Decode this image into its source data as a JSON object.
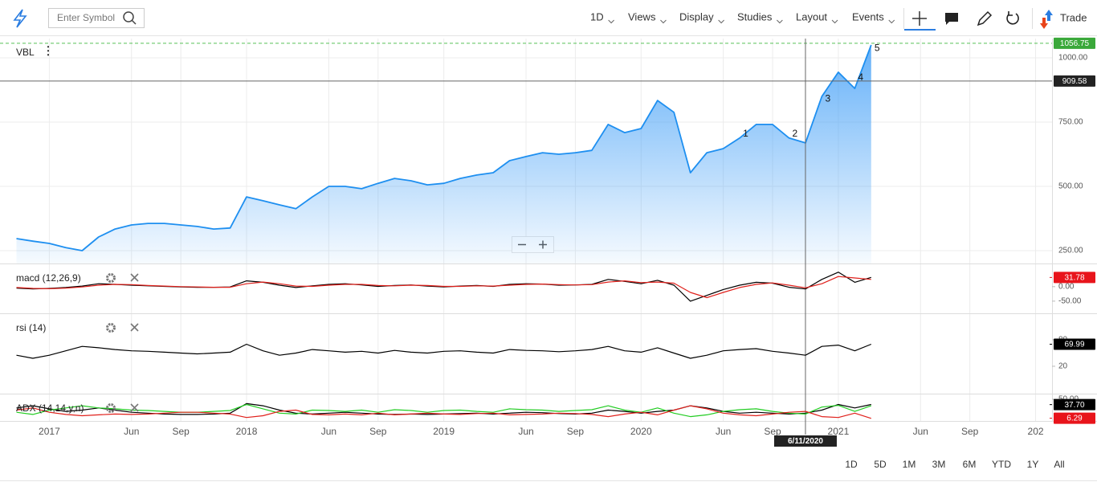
{
  "toolbar": {
    "search_placeholder": "Enter Symbol",
    "menus": [
      "1D",
      "Views",
      "Display",
      "Studies",
      "Layout",
      "Events"
    ],
    "trade": "Trade"
  },
  "chart_data": [
    {
      "type": "line",
      "title": "VBL",
      "x": [
        "2016-11",
        "2016-12",
        "2017-01",
        "2017-02",
        "2017-03",
        "2017-04",
        "2017-05",
        "2017-06",
        "2017-07",
        "2017-08",
        "2017-09",
        "2017-10",
        "2017-11",
        "2017-12",
        "2018-01",
        "2018-02",
        "2018-03",
        "2018-04",
        "2018-05",
        "2018-06",
        "2018-07",
        "2018-08",
        "2018-09",
        "2018-10",
        "2018-11",
        "2018-12",
        "2019-01",
        "2019-02",
        "2019-03",
        "2019-04",
        "2019-05",
        "2019-06",
        "2019-07",
        "2019-08",
        "2019-09",
        "2019-10",
        "2019-11",
        "2019-12",
        "2020-01",
        "2020-02",
        "2020-03",
        "2020-04",
        "2020-05",
        "2020-06",
        "2020-07",
        "2020-08",
        "2020-09",
        "2020-10",
        "2020-11",
        "2020-12",
        "2021-01",
        "2021-02",
        "2021-03"
      ],
      "xlim": [
        "2016-10",
        "2022-02"
      ],
      "xticks": [
        {
          "value": "2017-01",
          "label": "2017"
        },
        {
          "value": "2017-06",
          "label": "Jun"
        },
        {
          "value": "2017-09",
          "label": "Sep"
        },
        {
          "value": "2018-01",
          "label": "2018"
        },
        {
          "value": "2018-06",
          "label": "Jun"
        },
        {
          "value": "2018-09",
          "label": "Sep"
        },
        {
          "value": "2019-01",
          "label": "2019"
        },
        {
          "value": "2019-06",
          "label": "Jun"
        },
        {
          "value": "2019-09",
          "label": "Sep"
        },
        {
          "value": "2020-01",
          "label": "2020"
        },
        {
          "value": "2020-06",
          "label": "Jun"
        },
        {
          "value": "2020-09",
          "label": "Sep"
        },
        {
          "value": "2021-01",
          "label": "2021"
        },
        {
          "value": "2021-06",
          "label": "Jun"
        },
        {
          "value": "2021-09",
          "label": "Sep"
        },
        {
          "value": "2022-01",
          "label": "202"
        }
      ],
      "ylim": [
        200,
        1075
      ],
      "yticks": [
        {
          "value": 250,
          "label": "250.00"
        },
        {
          "value": 500,
          "label": "500.00"
        },
        {
          "value": 750,
          "label": "750.00"
        },
        {
          "value": 1000,
          "label": "1000.00"
        }
      ],
      "grid": true,
      "series": [
        {
          "color": "#1e8ff0",
          "values": [
            297,
            287,
            278,
            262,
            250,
            303,
            334,
            350,
            356,
            356,
            350,
            344,
            334,
            338,
            459,
            444,
            428,
            413,
            459,
            500,
            500,
            491,
            512,
            531,
            522,
            506,
            512,
            531,
            544,
            553,
            600,
            616,
            631,
            625,
            631,
            640,
            741,
            709,
            725,
            834,
            788,
            553,
            631,
            647,
            688,
            741,
            741,
            688,
            669,
            850,
            944,
            881,
            1050
          ]
        }
      ],
      "last_price": 1056.75,
      "crosshair": {
        "date": "6/11/2020",
        "x": "2020-11",
        "price": 909.58
      },
      "annotations": [
        {
          "text": "1",
          "x": "2020-07",
          "y": 703
        },
        {
          "text": "2",
          "x": "2020-10",
          "y": 703
        },
        {
          "text": "3",
          "x": "2020-12",
          "y": 840
        },
        {
          "text": "4",
          "x": "2021-02",
          "y": 922
        },
        {
          "text": "5",
          "x": "2021-03",
          "y": 1037
        }
      ]
    },
    {
      "type": "line",
      "title": "macd (12,26,9)",
      "ylim": [
        -92,
        80
      ],
      "yticks": [
        {
          "value": 0,
          "label": "0.00"
        },
        {
          "value": -50,
          "label": "-50.00"
        }
      ],
      "series": [
        {
          "color": "#000000",
          "values": [
            -5,
            -8,
            -6,
            -3,
            2,
            10,
            8,
            5,
            3,
            1,
            -1,
            -2,
            -2,
            -1,
            20,
            15,
            5,
            -3,
            3,
            8,
            10,
            6,
            1,
            4,
            6,
            2,
            -1,
            2,
            4,
            1,
            8,
            10,
            9,
            5,
            6,
            8,
            25,
            18,
            10,
            22,
            5,
            -50,
            -30,
            -10,
            5,
            15,
            12,
            -2,
            -8,
            25,
            50,
            15,
            32
          ]
        },
        {
          "color": "#e0201b",
          "values": [
            -3,
            -6,
            -7,
            -5,
            -1,
            5,
            8,
            7,
            4,
            2,
            0,
            -1,
            -2,
            -2,
            10,
            16,
            10,
            2,
            1,
            5,
            8,
            8,
            4,
            3,
            5,
            4,
            1,
            1,
            3,
            2,
            5,
            8,
            9,
            7,
            6,
            7,
            16,
            20,
            14,
            16,
            12,
            -20,
            -38,
            -20,
            -3,
            8,
            13,
            5,
            -4,
            10,
            35,
            30,
            25
          ]
        }
      ],
      "last_values": [
        {
          "value": 31.78,
          "color": "#e8141b"
        }
      ]
    },
    {
      "type": "line",
      "title": "rsi (14)",
      "ylim": [
        -42,
        140
      ],
      "yticks": [
        20,
        80
      ],
      "series": [
        {
          "color": "#000000",
          "values": [
            45,
            38,
            45,
            55,
            65,
            62,
            58,
            55,
            54,
            52,
            50,
            48,
            50,
            52,
            70,
            55,
            45,
            50,
            58,
            55,
            52,
            54,
            50,
            56,
            52,
            50,
            54,
            55,
            52,
            50,
            58,
            56,
            55,
            53,
            55,
            58,
            65,
            55,
            52,
            62,
            50,
            38,
            45,
            55,
            58,
            60,
            54,
            50,
            45,
            65,
            68,
            55,
            70
          ]
        }
      ],
      "last_values": [
        {
          "value": 69.99,
          "color": "#000000"
        }
      ]
    },
    {
      "type": "line",
      "title": "ADX (14,14,y,n)",
      "ylim": [
        0,
        63
      ],
      "yticks": [
        {
          "value": 50,
          "label": "50.00"
        }
      ],
      "series": [
        {
          "color": "#000000",
          "values": [
            30,
            35,
            28,
            22,
            25,
            30,
            25,
            20,
            18,
            16,
            15,
            15,
            16,
            18,
            40,
            35,
            25,
            18,
            16,
            18,
            20,
            18,
            16,
            15,
            16,
            15,
            16,
            17,
            18,
            16,
            18,
            20,
            19,
            17,
            16,
            18,
            25,
            22,
            18,
            22,
            25,
            35,
            30,
            22,
            18,
            20,
            18,
            16,
            18,
            25,
            38,
            30,
            38
          ]
        },
        {
          "color": "#22cc22",
          "values": [
            20,
            15,
            25,
            30,
            35,
            30,
            28,
            25,
            24,
            22,
            20,
            20,
            22,
            24,
            38,
            28,
            18,
            16,
            25,
            24,
            22,
            25,
            20,
            26,
            24,
            20,
            24,
            25,
            22,
            20,
            28,
            26,
            25,
            22,
            24,
            26,
            35,
            25,
            20,
            30,
            18,
            10,
            14,
            22,
            26,
            28,
            22,
            18,
            16,
            32,
            36,
            22,
            35
          ]
        },
        {
          "color": "#e0201b",
          "values": [
            25,
            30,
            20,
            15,
            12,
            14,
            16,
            15,
            16,
            18,
            20,
            20,
            18,
            16,
            8,
            12,
            22,
            25,
            15,
            14,
            16,
            14,
            18,
            14,
            16,
            18,
            16,
            15,
            17,
            18,
            14,
            15,
            16,
            18,
            17,
            15,
            10,
            16,
            20,
            14,
            25,
            35,
            28,
            18,
            14,
            12,
            16,
            20,
            22,
            10,
            8,
            18,
            6
          ]
        }
      ],
      "last_values": [
        {
          "value": 37.7,
          "label": "37.70",
          "color": "#000000"
        },
        {
          "value": 6.29,
          "label": "6.29",
          "color": "#e8141b"
        }
      ]
    }
  ],
  "ranges": [
    "1D",
    "5D",
    "1M",
    "3M",
    "6M",
    "YTD",
    "1Y",
    "All"
  ]
}
